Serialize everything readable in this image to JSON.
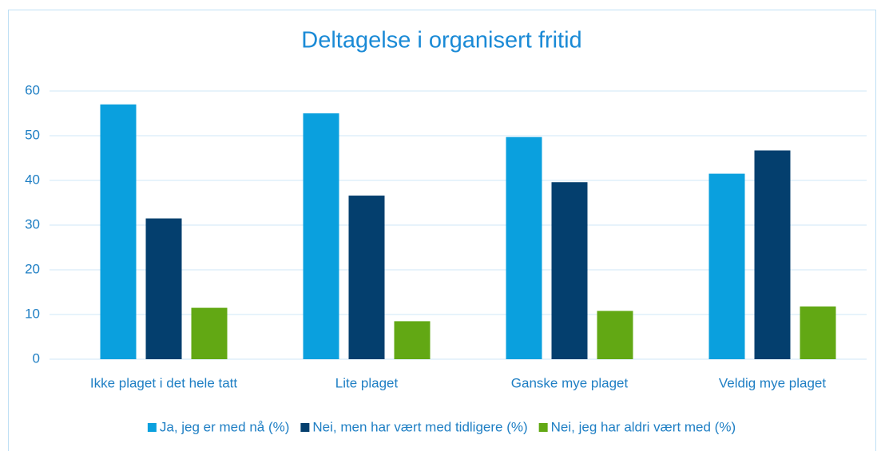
{
  "chart_data": {
    "type": "bar",
    "title": "Deltagelse i organisert fritid",
    "categories": [
      "Ikke plaget i det hele tatt",
      "Lite plaget",
      "Ganske mye plaget",
      "Veldig mye plaget"
    ],
    "series": [
      {
        "name": "Ja, jeg er med nå (%)",
        "color": "#0aa0de",
        "values": [
          57,
          55,
          49.7,
          41.5
        ]
      },
      {
        "name": "Nei, men har vært med tidligere  (%)",
        "color": "#043f6e",
        "values": [
          31.5,
          36.6,
          39.6,
          46.7
        ]
      },
      {
        "name": "Nei, jeg har aldri vært med  (%)",
        "color": "#62a814",
        "values": [
          11.5,
          8.5,
          10.8,
          11.8
        ]
      }
    ],
    "ylim": [
      0,
      60
    ],
    "yticks": [
      0,
      10,
      20,
      30,
      40,
      50,
      60
    ],
    "grid": true,
    "legend": "bottom"
  }
}
